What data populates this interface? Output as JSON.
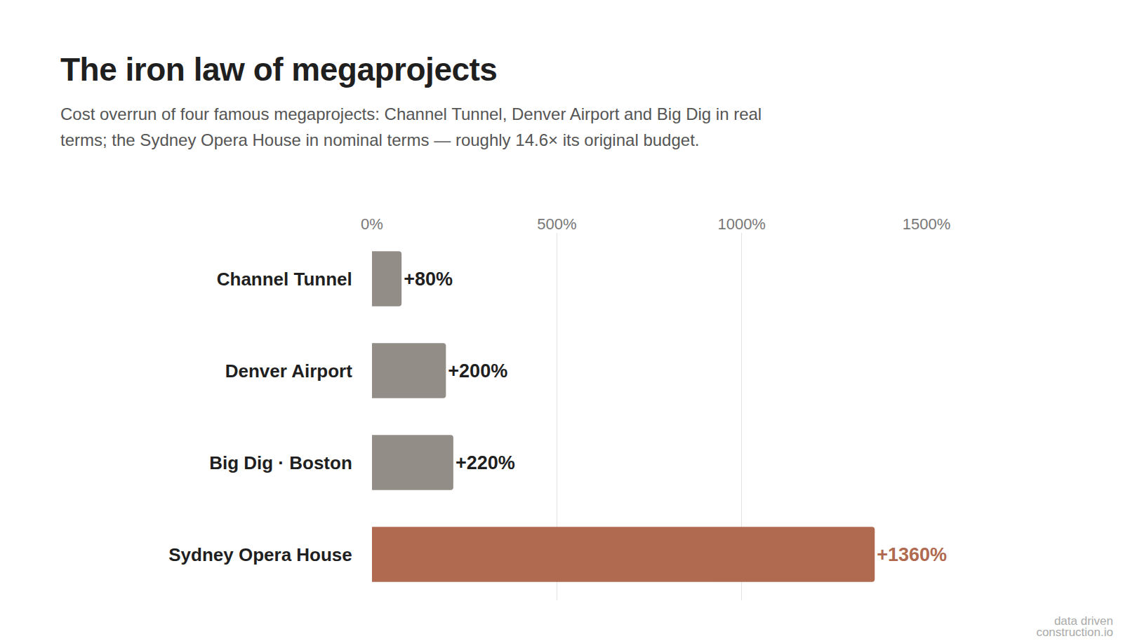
{
  "chart_data": {
    "type": "bar",
    "orientation": "horizontal",
    "title": "The iron law of megaprojects",
    "subtitle": "Cost overrun of four famous megaprojects: Channel Tunnel, Denver Airport and Big Dig in real terms; the Sydney Opera House in nominal terms — roughly 14.6× its original budget.",
    "categories": [
      "Channel Tunnel",
      "Denver Airport",
      "Big Dig · Boston",
      "Sydney Opera House"
    ],
    "values": [
      80,
      200,
      220,
      1360
    ],
    "value_labels": [
      "+80%",
      "+200%",
      "+220%",
      "+1360%"
    ],
    "colors": [
      "#928d86",
      "#928d86",
      "#928d86",
      "#b06a50"
    ],
    "data_labels": true,
    "xlim": [
      0,
      1500
    ],
    "xticks": [
      {
        "value": 0,
        "label": "0%"
      },
      {
        "value": 500,
        "label": "500%"
      },
      {
        "value": 1000,
        "label": "1000%"
      },
      {
        "value": 1500,
        "label": "1500%"
      }
    ],
    "grid": true,
    "annotations": [
      "data driven",
      "construction.io"
    ]
  }
}
